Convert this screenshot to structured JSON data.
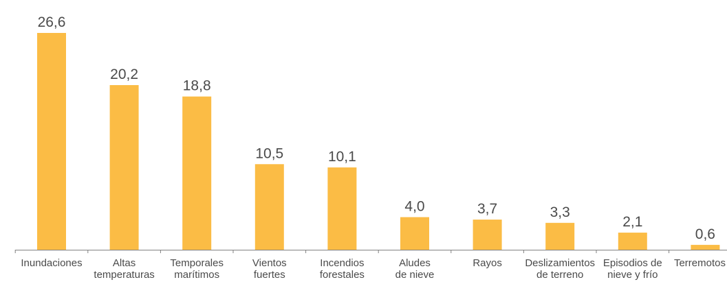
{
  "chart_data": {
    "type": "bar",
    "categories": [
      [
        "Inundaciones"
      ],
      [
        "Altas",
        "temperaturas"
      ],
      [
        "Temporales",
        "marítimos"
      ],
      [
        "Vientos",
        "fuertes"
      ],
      [
        "Incendios",
        "forestales"
      ],
      [
        "Aludes",
        "de nieve"
      ],
      [
        "Rayos"
      ],
      [
        "Deslizamientos",
        "de terreno"
      ],
      [
        "Episodios de",
        "nieve y frío"
      ],
      [
        "Terremotos"
      ]
    ],
    "values": [
      26.6,
      20.2,
      18.8,
      10.5,
      10.1,
      4.0,
      3.7,
      3.3,
      2.1,
      0.6
    ],
    "value_labels": [
      "26,6",
      "20,2",
      "18,8",
      "10,5",
      "10,1",
      "4,0",
      "3,7",
      "3,3",
      "2,1",
      "0,6"
    ],
    "ylim": [
      0,
      26.6
    ],
    "bar_color": "#FBBC45",
    "axis_color": "#808080",
    "grid": false,
    "legend": "none"
  }
}
